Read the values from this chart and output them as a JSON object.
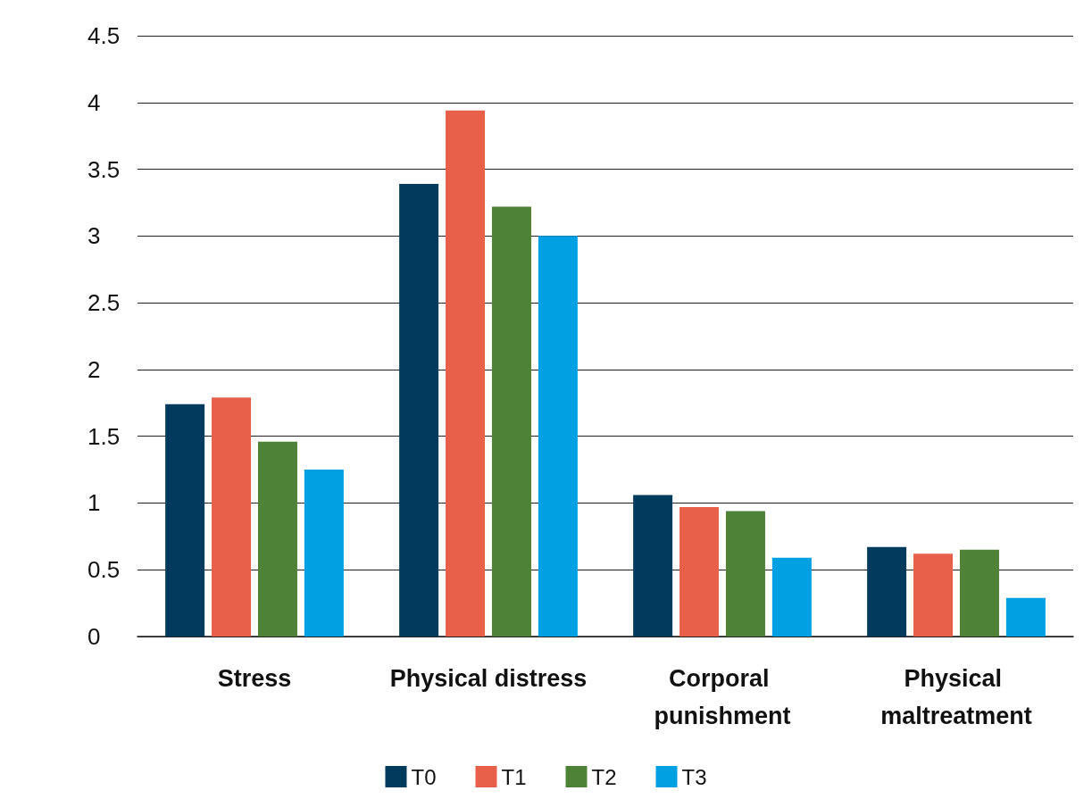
{
  "chart_data": {
    "type": "bar",
    "categories": [
      "Stress",
      "Physical distress",
      "Corporal punishment",
      "Physical maltreatment"
    ],
    "series": [
      {
        "name": "T0",
        "color": "#003a5d",
        "values": [
          1.74,
          3.39,
          1.06,
          0.67
        ]
      },
      {
        "name": "T1",
        "color": "#e8604a",
        "values": [
          1.79,
          3.94,
          0.97,
          0.62
        ]
      },
      {
        "name": "T2",
        "color": "#4e8237",
        "values": [
          1.46,
          3.22,
          0.94,
          0.65
        ]
      },
      {
        "name": "T3",
        "color": "#00a0e3",
        "values": [
          1.25,
          3.0,
          0.59,
          0.29
        ]
      }
    ],
    "ylim": [
      0,
      4.5
    ],
    "yticks": [
      0,
      0.5,
      1,
      1.5,
      2,
      2.5,
      3,
      3.5,
      4,
      4.5
    ],
    "grid": "y",
    "legend": "bottom"
  }
}
